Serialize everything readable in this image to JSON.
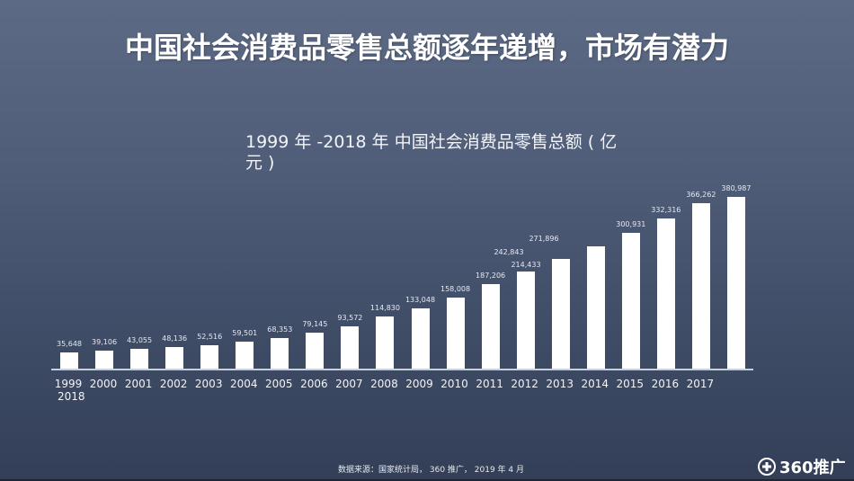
{
  "page": {
    "title": "中国社会消费品零售总额逐年递增，市场有潜力",
    "background_top": "#5c6a85",
    "background_bottom": "#333f57"
  },
  "chart_data": {
    "type": "bar",
    "title": "1999 年 -2018 年 中国社会消费品零售总额 ( 亿元 )",
    "title_lines": [
      "1999 年 -2018 年 中国社会消费品零售总额 ( 亿",
      "元 )"
    ],
    "xlabel": "",
    "ylabel": "",
    "grid": false,
    "legend": "none",
    "bar_color": "#ffffff",
    "categories": [
      "1999",
      "2000",
      "2001",
      "2002",
      "2003",
      "2004",
      "2005",
      "2006",
      "2007",
      "2008",
      "2009",
      "2010",
      "2011",
      "2012",
      "2013",
      "2014",
      "2015",
      "2016",
      "2017",
      "2018"
    ],
    "values": [
      35648,
      39106,
      43055,
      48136,
      52516,
      59501,
      68353,
      79145,
      93572,
      114830,
      133048,
      158008,
      187206,
      214433,
      242843,
      271896,
      300931,
      332316,
      366262,
      380987
    ],
    "data_labels": [
      "35,648",
      "39,106",
      "43,055",
      "48,136",
      "52,516",
      "59,501",
      "68,353",
      "79,145",
      "93,572",
      "114,830",
      "133,048",
      "158,008",
      "187,206",
      "214,433",
      "242,843",
      "271,896",
      "300,931",
      "332,316",
      "366,262",
      "380,987"
    ],
    "visible_tick_labels": [
      "1999",
      "2000",
      "2001",
      "2002",
      "2003",
      "2004",
      "2005",
      "2006",
      "2007",
      "2008",
      "2009",
      "2010",
      "2011",
      "2012",
      "2013",
      "2014",
      "2015",
      "2016",
      "2017"
    ],
    "extra_tick_label": "2018",
    "ylim": [
      0,
      380987
    ]
  },
  "footer": {
    "source": "数据来源：国家统计局， 360 推广， 2019 年 4 月",
    "brand": "360推广"
  }
}
